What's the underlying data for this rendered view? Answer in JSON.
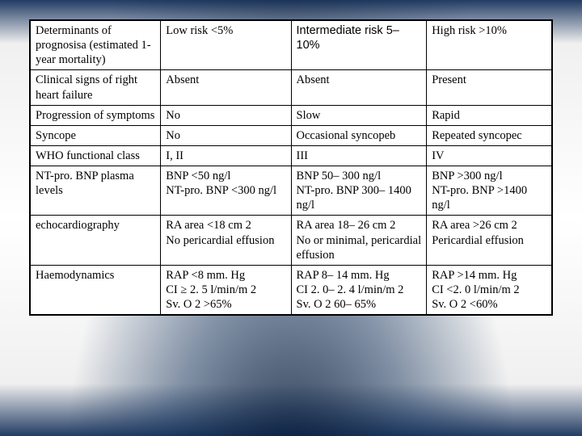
{
  "table": {
    "columns": [
      {
        "label": "Determinants of prognosisa (estimated 1-year mortality)"
      },
      {
        "label": "Low risk <5%"
      },
      {
        "label": "Intermediate risk 5– 10%"
      },
      {
        "label": "High risk >10%"
      }
    ],
    "rows": [
      {
        "param": "Clinical signs of right heart failure",
        "low": "Absent",
        "mid": "Absent",
        "high": "Present"
      },
      {
        "param": "Progression of symptoms",
        "low": "No",
        "mid": "Slow",
        "high": "Rapid"
      },
      {
        "param": "Syncope",
        "low": "No",
        "mid": "Occasional syncopeb",
        "high": "Repeated syncopec"
      },
      {
        "param": "WHO functional class",
        "low": "I, II",
        "mid": "III",
        "high": "IV"
      },
      {
        "param": "NT-pro. BNP plasma levels",
        "low": "BNP <50 ng/l\nNT-pro. BNP <300 ng/l",
        "mid": "BNP 50– 300 ng/l\nNT-pro. BNP 300– 1400 ng/l",
        "high": "BNP >300 ng/l\nNT-pro. BNP >1400 ng/l"
      },
      {
        "param": "echocardiography",
        "low": "RA area <18 cm 2\nNo pericardial effusion",
        "mid": "RA area 18– 26 cm 2\nNo or minimal, pericardial effusion",
        "high": "RA area >26 cm 2\nPericardial effusion"
      },
      {
        "param": "Haemodynamics",
        "low": "RAP <8 mm. Hg\nCI ≥ 2. 5 l/min/m 2\nSv. O 2 >65%",
        "mid": "RAP 8– 14 mm. Hg\nCI 2. 0– 2. 4 l/min/m 2\nSv. O 2 60– 65%",
        "high": "RAP >14 mm. Hg\nCI <2. 0 l/min/m 2\nSv. O 2 <60%"
      }
    ],
    "style": {
      "border_color": "#000000",
      "background_color": "#ffffff",
      "font_family_serif": "Times New Roman",
      "font_family_sans": "Arial",
      "font_size_pt": 11
    }
  },
  "slide": {
    "background_gradient": [
      "#1a2f52",
      "#ffffff",
      "#1a2f52"
    ]
  }
}
